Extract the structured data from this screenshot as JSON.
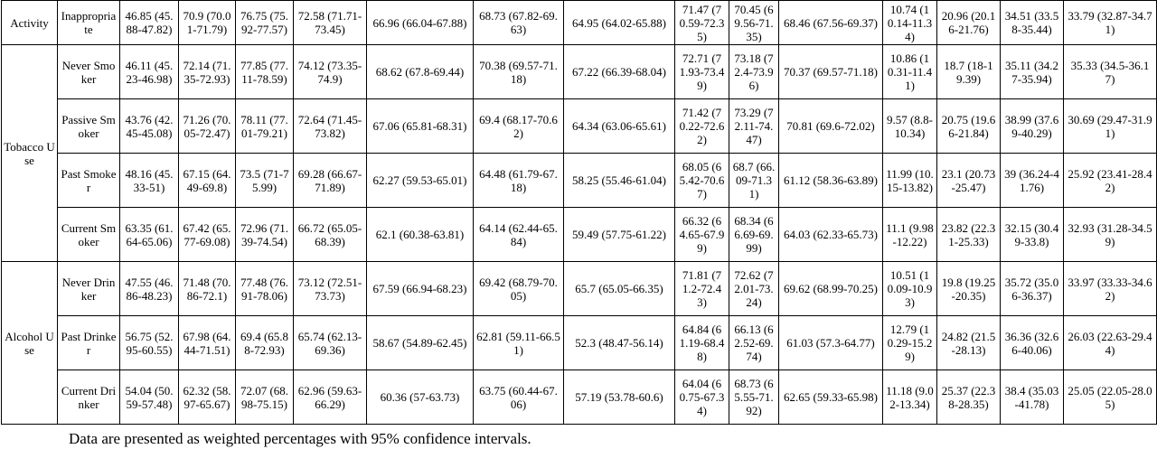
{
  "table": {
    "groups": [
      {
        "label": "Activity",
        "rows": [
          {
            "label": "Inappropriate",
            "cells": [
              "46.85 (45.88-47.82)",
              "70.9 (70.01-71.79)",
              "76.75 (75.92-77.57)",
              "72.58 (71.71-73.45)",
              "66.96 (66.04-67.88)",
              "68.73 (67.82-69.63)",
              "64.95 (64.02-65.88)",
              "71.47 (70.59-72.35)",
              "70.45 (69.56-71.35)",
              "68.46 (67.56-69.37)",
              "10.74 (10.14-11.34)",
              "20.96 (20.16-21.76)",
              "34.51 (33.58-35.44)",
              "33.79 (32.87-34.71)"
            ]
          }
        ]
      },
      {
        "label": "Tobacco Use",
        "rows": [
          {
            "label": "Never Smoker",
            "cells": [
              "46.11 (45.23-46.98)",
              "72.14 (71.35-72.93)",
              "77.85 (77.11-78.59)",
              "74.12 (73.35-74.9)",
              "68.62 (67.8-69.44)",
              "70.38 (69.57-71.18)",
              "67.22 (66.39-68.04)",
              "72.71 (71.93-73.49)",
              "73.18 (72.4-73.96)",
              "70.37 (69.57-71.18)",
              "10.86 (10.31-11.41)",
              "18.7 (18-19.39)",
              "35.11 (34.27-35.94)",
              "35.33 (34.5-36.17)"
            ]
          },
          {
            "label": "Passive Smoker",
            "cells": [
              "43.76 (42.45-45.08)",
              "71.26 (70.05-72.47)",
              "78.11 (77.01-79.21)",
              "72.64 (71.45-73.82)",
              "67.06 (65.81-68.31)",
              "69.4 (68.17-70.62)",
              "64.34 (63.06-65.61)",
              "71.42 (70.22-72.62)",
              "73.29 (72.11-74.47)",
              "70.81 (69.6-72.02)",
              "9.57 (8.8-10.34)",
              "20.75 (19.66-21.84)",
              "38.99 (37.69-40.29)",
              "30.69 (29.47-31.91)"
            ]
          },
          {
            "label": "Past Smoker",
            "cells": [
              "48.16 (45.33-51)",
              "67.15 (64.49-69.8)",
              "73.5 (71-75.99)",
              "69.28 (66.67-71.89)",
              "62.27 (59.53-65.01)",
              "64.48 (61.79-67.18)",
              "58.25 (55.46-61.04)",
              "68.05 (65.42-70.67)",
              "68.7 (66.09-71.31)",
              "61.12 (58.36-63.89)",
              "11.99 (10.15-13.82)",
              "23.1 (20.73-25.47)",
              "39 (36.24-41.76)",
              "25.92 (23.41-28.42)"
            ]
          },
          {
            "label": "Current Smoker",
            "cells": [
              "63.35 (61.64-65.06)",
              "67.42 (65.77-69.08)",
              "72.96 (71.39-74.54)",
              "66.72 (65.05-68.39)",
              "62.1 (60.38-63.81)",
              "64.14 (62.44-65.84)",
              "59.49 (57.75-61.22)",
              "66.32 (64.65-67.99)",
              "68.34 (66.69-69.99)",
              "64.03 (62.33-65.73)",
              "11.1 (9.98-12.22)",
              "23.82 (22.31-25.33)",
              "32.15 (30.49-33.8)",
              "32.93 (31.28-34.59)"
            ]
          }
        ]
      },
      {
        "label": "Alcohol Use",
        "rows": [
          {
            "label": "Never Drinker",
            "cells": [
              "47.55 (46.86-48.23)",
              "71.48 (70.86-72.1)",
              "77.48 (76.91-78.06)",
              "73.12 (72.51-73.73)",
              "67.59 (66.94-68.23)",
              "69.42 (68.79-70.05)",
              "65.7 (65.05-66.35)",
              "71.81 (71.2-72.43)",
              "72.62 (72.01-73.24)",
              "69.62 (68.99-70.25)",
              "10.51 (10.09-10.93)",
              "19.8 (19.25-20.35)",
              "35.72 (35.06-36.37)",
              "33.97 (33.33-34.62)"
            ]
          },
          {
            "label": "Past Drinker",
            "cells": [
              "56.75 (52.95-60.55)",
              "67.98 (64.44-71.51)",
              "69.4 (65.88-72.93)",
              "65.74 (62.13-69.36)",
              "58.67 (54.89-62.45)",
              "62.81 (59.11-66.51)",
              "52.3 (48.47-56.14)",
              "64.84 (61.19-68.48)",
              "66.13 (62.52-69.74)",
              "61.03 (57.3-64.77)",
              "12.79 (10.29-15.29)",
              "24.82 (21.5-28.13)",
              "36.36 (32.66-40.06)",
              "26.03 (22.63-29.44)"
            ]
          },
          {
            "label": "Current Drinker",
            "cells": [
              "54.04 (50.59-57.48)",
              "62.32 (58.97-65.67)",
              "72.07 (68.98-75.15)",
              "62.96 (59.63-66.29)",
              "60.36 (57-63.73)",
              "63.75 (60.44-67.06)",
              "57.19 (53.78-60.6)",
              "64.04 (60.75-67.34)",
              "68.73 (65.55-71.92)",
              "62.65 (59.33-65.98)",
              "11.18 (9.02-13.34)",
              "25.37 (22.38-28.35)",
              "38.4 (35.03-41.78)",
              "25.05 (22.05-28.05)"
            ]
          }
        ]
      }
    ]
  },
  "footnote": "Data are presented as weighted percentages with 95% confidence intervals."
}
